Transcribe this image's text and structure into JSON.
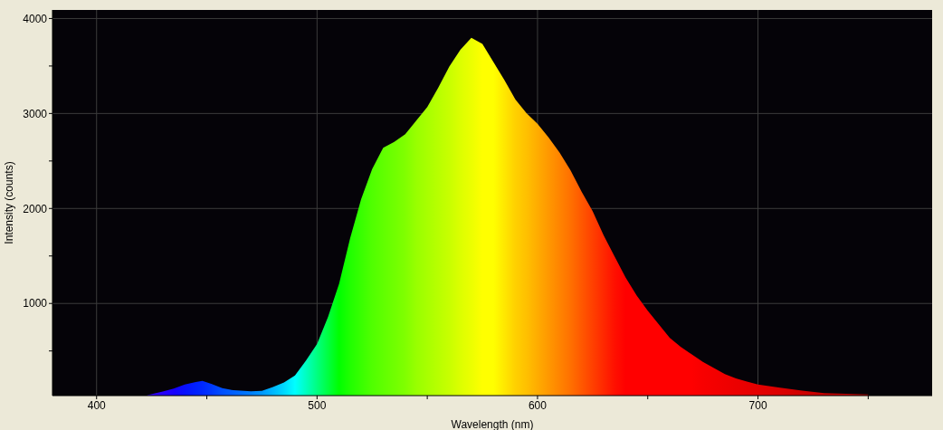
{
  "chart_data": {
    "type": "area",
    "xlabel": "Wavelength (nm)",
    "ylabel": "Intensity (counts)",
    "x": [
      423,
      430,
      435,
      440,
      445,
      448,
      452,
      457,
      462,
      470,
      475,
      480,
      485,
      490,
      495,
      500,
      505,
      510,
      515,
      520,
      525,
      530,
      535,
      540,
      545,
      550,
      555,
      560,
      565,
      570,
      575,
      580,
      585,
      590,
      595,
      600,
      605,
      610,
      615,
      620,
      625,
      630,
      635,
      640,
      645,
      650,
      655,
      660,
      665,
      670,
      675,
      680,
      685,
      690,
      695,
      700,
      710,
      720,
      730,
      740,
      750
    ],
    "values": [
      35,
      72,
      105,
      146,
      174,
      184,
      155,
      108,
      86,
      76,
      80,
      120,
      168,
      241,
      400,
      574,
      860,
      1208,
      1686,
      2098,
      2415,
      2638,
      2701,
      2781,
      2924,
      3067,
      3272,
      3495,
      3670,
      3796,
      3733,
      3543,
      3352,
      3146,
      3003,
      2892,
      2749,
      2590,
      2400,
      2177,
      1971,
      1717,
      1492,
      1272,
      1082,
      924,
      781,
      638,
      543,
      463,
      384,
      320,
      257,
      210,
      177,
      146,
      114,
      82,
      57,
      48,
      41
    ],
    "colors": [
      "#3a00ff",
      "#2800ff",
      "#1800ff",
      "#0810ff",
      "#0020ff",
      "#0028ff",
      "#0038ff",
      "#0050ff",
      "#0060ff",
      "#0080ff",
      "#0098ff",
      "#00b8ff",
      "#00d8ff",
      "#00ffff",
      "#00ffc0",
      "#00ff80",
      "#00ff40",
      "#00ff00",
      "#20ff00",
      "#38ff00",
      "#50ff00",
      "#60ff00",
      "#70ff00",
      "#80ff00",
      "#98ff00",
      "#a8ff00",
      "#b8ff00",
      "#c8ff00",
      "#dcff00",
      "#ecff00",
      "#ffff00",
      "#ffff00",
      "#ffe800",
      "#ffd000",
      "#ffc000",
      "#ffac00",
      "#ff9800",
      "#ff8400",
      "#ff7000",
      "#ff5800",
      "#ff4000",
      "#ff2800",
      "#ff1000",
      "#ff0000",
      "#ff0000",
      "#ff0000",
      "#ff0000",
      "#ff0000",
      "#ff0000",
      "#ff0000",
      "#f80000",
      "#f40000",
      "#f00000",
      "#ec0000",
      "#e80000",
      "#e40000",
      "#dc0000",
      "#d00000",
      "#c80000",
      "#c00000",
      "#b80000"
    ],
    "xlim": [
      380,
      779
    ],
    "xticks": [
      400,
      {
        "value": 450,
        "label": null
      },
      500,
      {
        "value": 550,
        "label": null
      },
      600,
      {
        "value": 650,
        "label": null
      },
      700,
      {
        "value": 750,
        "label": null
      }
    ],
    "ylim": [
      30,
      4090
    ],
    "yticks": [
      {
        "value": 500,
        "label": null
      },
      1000,
      {
        "value": 1500,
        "label": null
      },
      2000,
      {
        "value": 2500,
        "label": null
      },
      3000,
      {
        "value": 3500,
        "label": null
      },
      4000
    ],
    "grid": true
  }
}
